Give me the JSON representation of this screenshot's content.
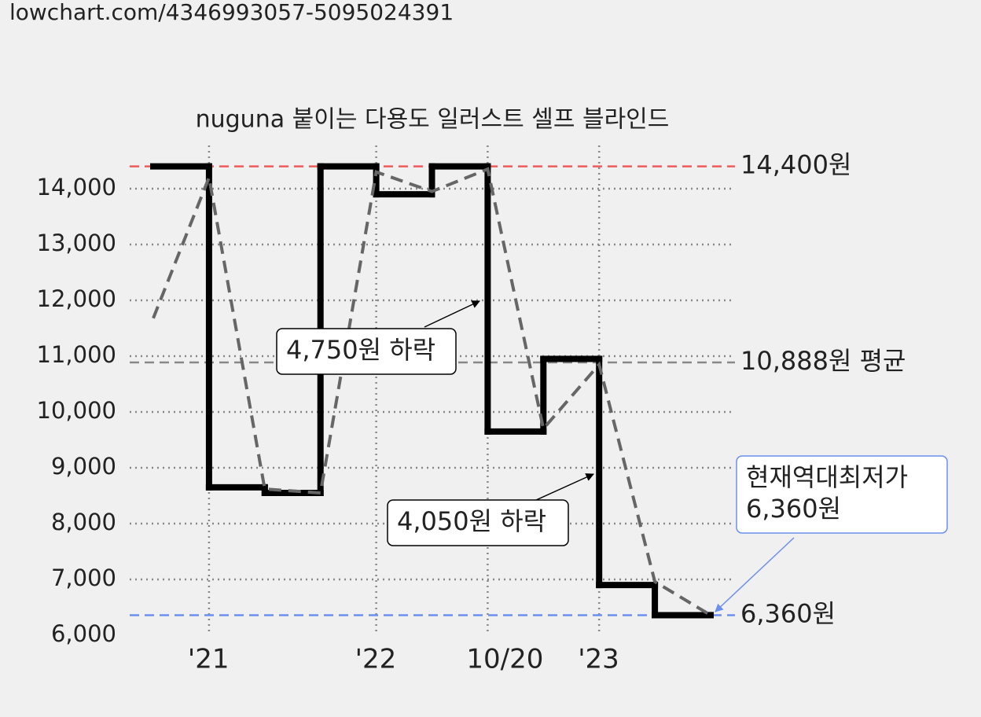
{
  "url": "lowchart.com/4346993057-5095024391",
  "chart_data": {
    "type": "step",
    "title": "nuguna 붙이는 다용도 일러스트 셀프 블라인드",
    "categories": [
      null,
      "'21",
      null,
      null,
      "'22",
      null,
      "10/20",
      null,
      "'23",
      null,
      null
    ],
    "category_colors": [
      null,
      "#222222",
      null,
      null,
      "#222222",
      null,
      "#888888",
      null,
      "#222222",
      null,
      null
    ],
    "series": [
      {
        "color": "#000000",
        "style": "solid",
        "values": [
          14400,
          8650,
          8550,
          14400,
          13900,
          14400,
          9650,
          10950,
          6900,
          6360,
          6360
        ]
      },
      {
        "color": "#666666",
        "style": "dashed",
        "values": [
          11680,
          14200,
          8620,
          8550,
          14300,
          13950,
          14350,
          9700,
          10850,
          6960,
          6360
        ]
      }
    ],
    "ylim": [
      6000,
      14600
    ],
    "yticks": [
      {
        "value": 6000,
        "label": "6,000"
      },
      {
        "value": 7000,
        "label": "7,000"
      },
      {
        "value": 8000,
        "label": "8,000"
      },
      {
        "value": 9000,
        "label": "9,000"
      },
      {
        "value": 10000,
        "label": "10,000"
      },
      {
        "value": 11000,
        "label": "11,000"
      },
      {
        "value": 12000,
        "label": "12,000"
      },
      {
        "value": 13000,
        "label": "13,000"
      },
      {
        "value": 14000,
        "label": "14,000"
      }
    ],
    "grid": true,
    "reference_lines": [
      {
        "value": 14400,
        "label": "14,400원",
        "color": "#f05a5a"
      },
      {
        "value": 10888,
        "label": "10,888원 평균",
        "color": "#888888"
      },
      {
        "value": 6360,
        "label": "6,360원",
        "color": "#6a8ff0"
      }
    ],
    "annotations": [
      {
        "lines": [
          "4,750원 하락"
        ]
      },
      {
        "lines": [
          "4,050원 하락"
        ]
      },
      {
        "lines": [
          "현재역대최저가",
          "6,360원"
        ],
        "color": "#6a8ff0"
      }
    ]
  }
}
